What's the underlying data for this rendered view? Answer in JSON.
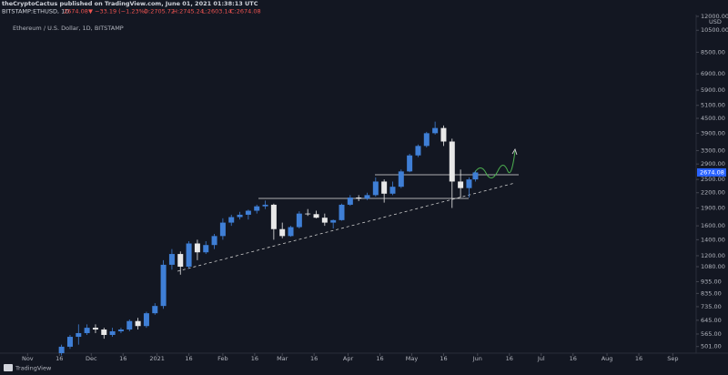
{
  "header": {
    "author_line": "theCryptoCactus published on TradingView.com, June 01, 2021 01:38:13 UTC",
    "symbol": "BITSTAMP:ETHUSD, 1D",
    "last": "2674.08",
    "change": "▼ −33.19 (−1.23%)",
    "ohlc": [
      "O:2705.72",
      "H:2745.24",
      "L:2603.14",
      "C:2674.08"
    ]
  },
  "chart_data": {
    "type": "candlestick",
    "title": "Ethereum / U.S. Dollar, 1D, BITSTAMP",
    "y_unit": "USD",
    "log_scale": true,
    "up_color": "#3f7fd6",
    "down_color": "#e8e8e8",
    "x": [
      16,
      20,
      24,
      28,
      32,
      36,
      40,
      44,
      48,
      52,
      56,
      60,
      64,
      68,
      72,
      76,
      80,
      84,
      88,
      92,
      96,
      100,
      104,
      108,
      112,
      116,
      120,
      124,
      128,
      132,
      136,
      140,
      144,
      148,
      152,
      156,
      160,
      164,
      168,
      172,
      176,
      180,
      184,
      188,
      192,
      196,
      200,
      204,
      208,
      211
    ],
    "open": [
      470,
      500,
      550,
      570,
      600,
      590,
      560,
      580,
      590,
      640,
      610,
      690,
      740,
      1100,
      1220,
      1080,
      1350,
      1240,
      1330,
      1450,
      1650,
      1740,
      1780,
      1850,
      1930,
      1960,
      1550,
      1450,
      1580,
      1800,
      1790,
      1730,
      1650,
      1690,
      1960,
      2100,
      2080,
      2150,
      2450,
      2180,
      2330,
      2700,
      3150,
      3450,
      3900,
      4100,
      3600,
      2450,
      2300,
      2500
    ],
    "high": [
      510,
      560,
      620,
      620,
      620,
      600,
      600,
      600,
      650,
      660,
      700,
      760,
      1150,
      1280,
      1250,
      1380,
      1400,
      1380,
      1480,
      1720,
      1780,
      1830,
      1870,
      1960,
      2040,
      1980,
      1650,
      1600,
      1840,
      1880,
      1850,
      1800,
      1700,
      1980,
      2150,
      2150,
      2200,
      2550,
      2500,
      2450,
      2750,
      3200,
      3500,
      3950,
      4360,
      4200,
      3700,
      2750,
      2550,
      2720
    ],
    "low": [
      460,
      490,
      510,
      560,
      570,
      540,
      550,
      570,
      580,
      590,
      600,
      680,
      720,
      1050,
      1000,
      1060,
      1150,
      1220,
      1280,
      1400,
      1600,
      1700,
      1700,
      1800,
      1880,
      1400,
      1420,
      1440,
      1560,
      1760,
      1720,
      1600,
      1560,
      1680,
      1940,
      2030,
      2050,
      2120,
      2000,
      2150,
      2300,
      2680,
      3100,
      3400,
      3850,
      3450,
      1900,
      2100,
      2100,
      2450
    ],
    "close": [
      500,
      550,
      570,
      600,
      590,
      560,
      580,
      590,
      640,
      610,
      690,
      740,
      1100,
      1220,
      1080,
      1350,
      1240,
      1330,
      1450,
      1650,
      1740,
      1780,
      1850,
      1930,
      1960,
      1550,
      1450,
      1580,
      1800,
      1790,
      1730,
      1650,
      1690,
      1960,
      2100,
      2080,
      2150,
      2450,
      2180,
      2330,
      2700,
      3150,
      3450,
      3900,
      4100,
      3600,
      2450,
      2300,
      2500,
      2674
    ],
    "last_price": 2674.08,
    "xlim": [
      -13,
      315
    ],
    "xticks": [
      {
        "value": 0,
        "label": "Nov"
      },
      {
        "value": 15,
        "label": "16"
      },
      {
        "value": 30,
        "label": "Dec"
      },
      {
        "value": 45,
        "label": "16"
      },
      {
        "value": 61,
        "label": "2021"
      },
      {
        "value": 76,
        "label": "16"
      },
      {
        "value": 92,
        "label": "Feb"
      },
      {
        "value": 107,
        "label": "16"
      },
      {
        "value": 120,
        "label": "Mar"
      },
      {
        "value": 135,
        "label": "16"
      },
      {
        "value": 151,
        "label": "Apr"
      },
      {
        "value": 166,
        "label": "16"
      },
      {
        "value": 181,
        "label": "May"
      },
      {
        "value": 196,
        "label": "16"
      },
      {
        "value": 212,
        "label": "Jun"
      },
      {
        "value": 227,
        "label": "16"
      },
      {
        "value": 242,
        "label": "Jul"
      },
      {
        "value": 257,
        "label": "16"
      },
      {
        "value": 273,
        "label": "Aug"
      },
      {
        "value": 288,
        "label": "16"
      },
      {
        "value": 304,
        "label": "Sep"
      }
    ],
    "ylim": [
      470,
      12000
    ],
    "yticks": [
      {
        "value": 501,
        "label": "501.00"
      },
      {
        "value": 565,
        "label": "565.00"
      },
      {
        "value": 645,
        "label": "645.00"
      },
      {
        "value": 735,
        "label": "735.00"
      },
      {
        "value": 835,
        "label": "835.00"
      },
      {
        "value": 935,
        "label": "935.00"
      },
      {
        "value": 1080,
        "label": "1080.00"
      },
      {
        "value": 1200,
        "label": "1200.00"
      },
      {
        "value": 1400,
        "label": "1400.00"
      },
      {
        "value": 1600,
        "label": "1600.00"
      },
      {
        "value": 1900,
        "label": "1900.00"
      },
      {
        "value": 2200,
        "label": "2200.00"
      },
      {
        "value": 2500,
        "label": "2500.00"
      },
      {
        "value": 2900,
        "label": "2900.00"
      },
      {
        "value": 3300,
        "label": "3300.00"
      },
      {
        "value": 3900,
        "label": "3900.00"
      },
      {
        "value": 4500,
        "label": "4500.00"
      },
      {
        "value": 5100,
        "label": "5100.00"
      },
      {
        "value": 5900,
        "label": "5900.00"
      },
      {
        "value": 6900,
        "label": "6900.00"
      },
      {
        "value": 8500,
        "label": "8500.00"
      },
      {
        "value": 10500,
        "label": "10500.00"
      },
      {
        "value": 12000,
        "label": "12000.00"
      }
    ]
  },
  "footer": {
    "brand": "TradingView"
  }
}
